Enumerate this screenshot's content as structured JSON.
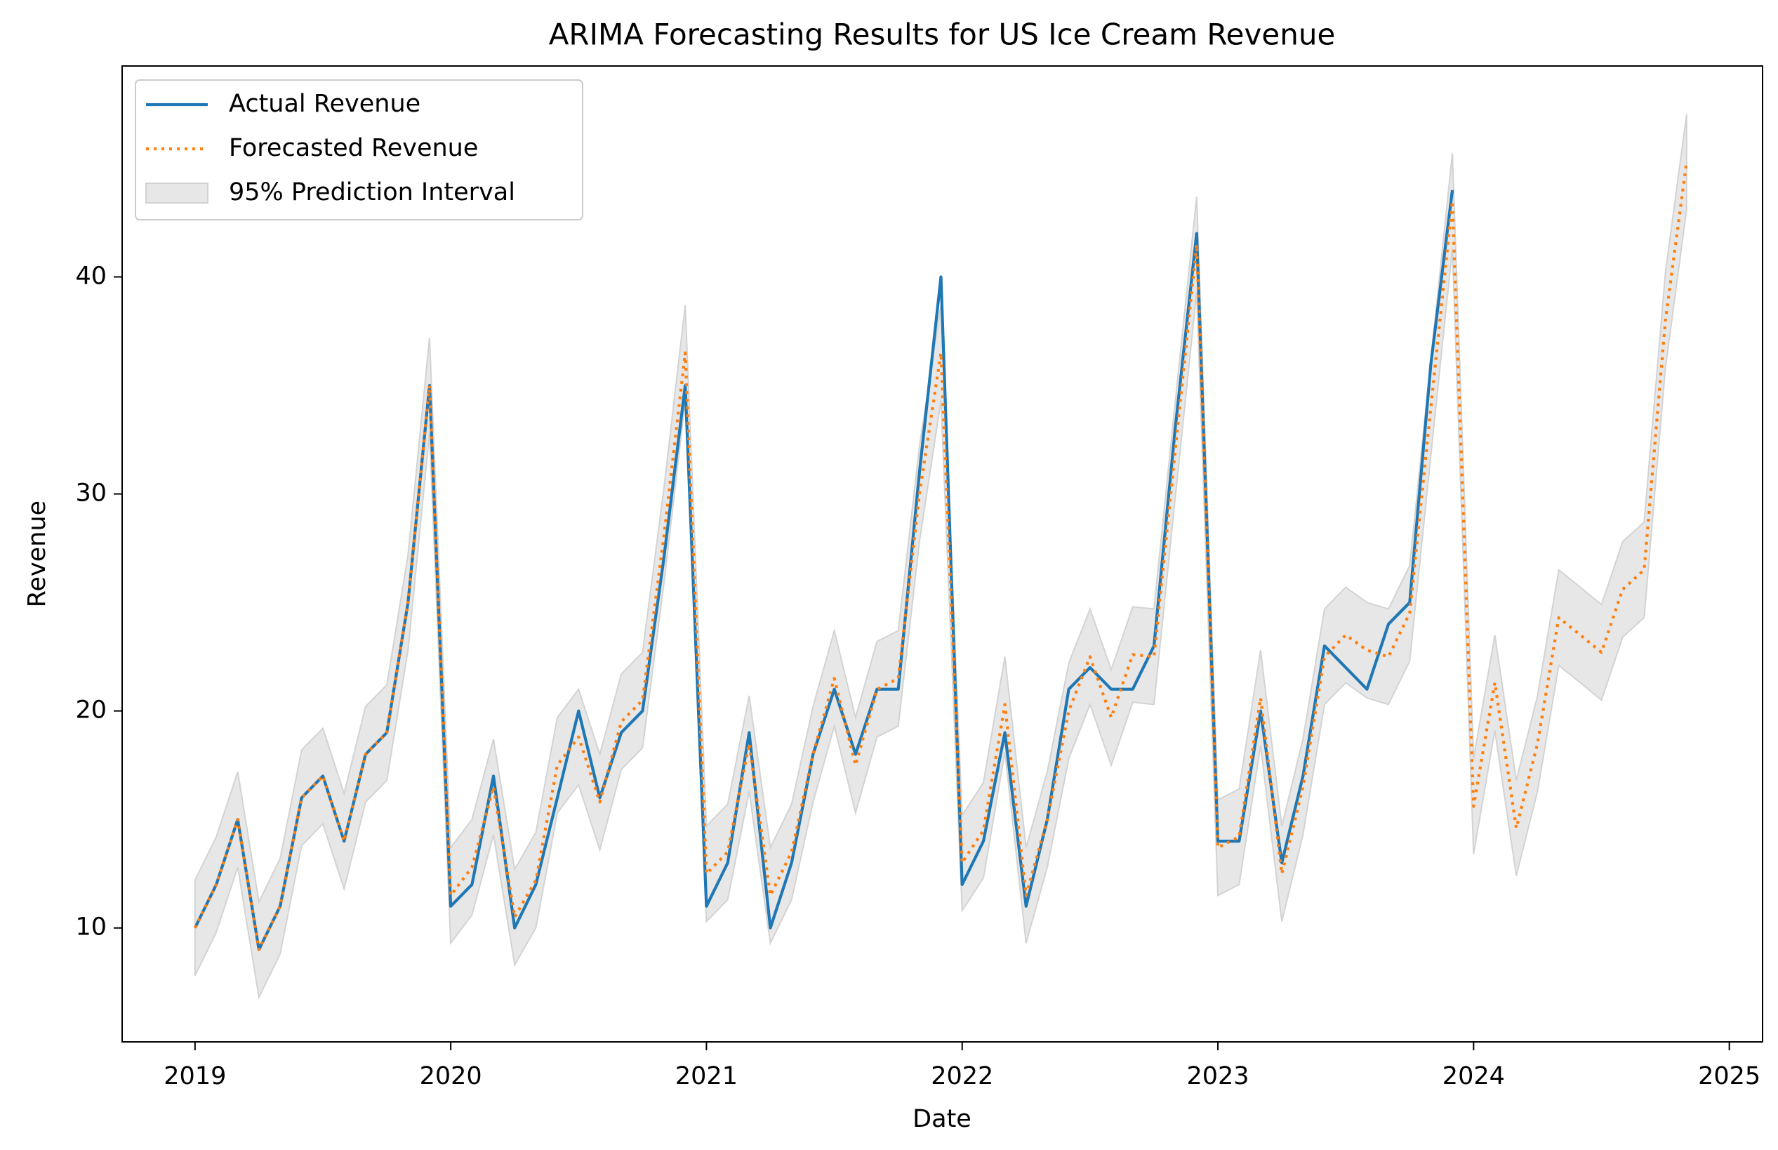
{
  "chart_data": {
    "type": "line",
    "title": "ARIMA Forecasting Results for US Ice Cream Revenue",
    "x_label": "Date",
    "y_label": "Revenue",
    "x": [
      2019,
      2019.083,
      2019.167,
      2019.25,
      2019.333,
      2019.417,
      2019.5,
      2019.583,
      2019.667,
      2019.75,
      2019.833,
      2019.917,
      2020,
      2020.083,
      2020.167,
      2020.25,
      2020.333,
      2020.417,
      2020.5,
      2020.583,
      2020.667,
      2020.75,
      2020.833,
      2020.917,
      2021,
      2021.083,
      2021.167,
      2021.25,
      2021.333,
      2021.417,
      2021.5,
      2021.583,
      2021.667,
      2021.75,
      2021.833,
      2021.917,
      2022,
      2022.083,
      2022.167,
      2022.25,
      2022.333,
      2022.417,
      2022.5,
      2022.583,
      2022.667,
      2022.75,
      2022.833,
      2022.917,
      2023,
      2023.083,
      2023.167,
      2023.25,
      2023.333,
      2023.417,
      2023.5,
      2023.583,
      2023.667,
      2023.75,
      2023.833,
      2023.917,
      2024,
      2024.083,
      2024.167,
      2024.25,
      2024.333,
      2024.417,
      2024.5,
      2024.583,
      2024.667,
      2024.75,
      2024.833
    ],
    "series": [
      {
        "name": "Actual Revenue",
        "color": "#1f77b4",
        "style": "solid",
        "values": [
          10,
          12,
          15,
          9,
          11,
          16,
          17,
          14,
          18,
          19,
          25,
          35,
          11,
          12,
          17,
          10,
          12,
          16,
          20,
          16,
          19,
          20,
          27,
          35,
          11,
          13,
          19,
          10,
          13,
          18,
          21,
          18,
          21,
          21,
          31,
          40,
          12,
          14,
          19,
          11,
          15,
          21,
          22,
          21,
          21,
          23,
          33,
          42,
          14,
          14,
          20,
          13,
          17,
          23,
          22,
          21,
          24,
          25,
          36,
          44,
          null,
          null,
          null,
          null,
          null,
          null,
          null,
          null,
          null,
          null,
          null
        ]
      },
      {
        "name": "Forecasted Revenue",
        "color": "#ff7f0e",
        "style": "dotted",
        "values": [
          10,
          12,
          15,
          9,
          11,
          16,
          17,
          14,
          18,
          19,
          25,
          35,
          11.5,
          12.8,
          16.5,
          10.5,
          12.2,
          17.5,
          18.8,
          15.8,
          19.5,
          20.5,
          28,
          36.5,
          12.5,
          13.5,
          18.5,
          11.5,
          13.5,
          18,
          21.5,
          17.5,
          21,
          21.5,
          30,
          36.5,
          13,
          14.5,
          20.3,
          11.5,
          15,
          20,
          22.5,
          19.7,
          22.6,
          22.5,
          32,
          41.5,
          13.7,
          14.2,
          20.6,
          12.5,
          16.5,
          22.5,
          23.5,
          22.8,
          22.5,
          24.5,
          34,
          43.5,
          15.6,
          21.3,
          14.6,
          18.5,
          24.3,
          23.5,
          22.7,
          25.6,
          26.5,
          38,
          45.3
        ]
      },
      {
        "name": "95% Prediction Interval",
        "color": "#d3d3d3",
        "style": "band",
        "lower": [
          7.8,
          9.8,
          12.8,
          6.8,
          8.8,
          13.8,
          14.8,
          11.8,
          15.8,
          16.8,
          22.8,
          32.8,
          9.3,
          10.6,
          14.3,
          8.3,
          10,
          15.3,
          16.6,
          13.6,
          17.3,
          18.3,
          25.8,
          34.3,
          10.3,
          11.3,
          16.3,
          9.3,
          11.3,
          15.8,
          19.3,
          15.3,
          18.8,
          19.3,
          27.8,
          34.3,
          10.8,
          12.3,
          18.1,
          9.3,
          12.8,
          17.8,
          20.3,
          17.5,
          20.4,
          20.3,
          29.8,
          39.3,
          11.5,
          12,
          18.4,
          10.3,
          14.3,
          20.3,
          21.3,
          20.6,
          20.3,
          22.3,
          31.8,
          41.3,
          13.4,
          19.1,
          12.4,
          16.3,
          22.1,
          21.3,
          20.5,
          23.4,
          24.3,
          35.8,
          43.1
        ],
        "upper": [
          12.2,
          14.2,
          17.2,
          11.2,
          13.2,
          18.2,
          19.2,
          16.2,
          20.2,
          21.2,
          27.2,
          37.2,
          13.7,
          15,
          18.7,
          12.7,
          14.4,
          19.7,
          21,
          18,
          21.7,
          22.7,
          30.2,
          38.7,
          14.7,
          15.7,
          20.7,
          13.7,
          15.7,
          20.2,
          23.7,
          19.7,
          23.2,
          23.7,
          32.2,
          38.7,
          15.2,
          16.7,
          22.5,
          13.7,
          17.2,
          22.2,
          24.7,
          21.9,
          24.8,
          24.7,
          34.2,
          43.7,
          15.9,
          16.4,
          22.8,
          14.7,
          18.7,
          24.7,
          25.7,
          25,
          24.7,
          26.7,
          36.2,
          45.7,
          17.8,
          23.5,
          16.8,
          20.7,
          26.5,
          25.7,
          24.9,
          27.8,
          28.7,
          40.2,
          47.5
        ]
      }
    ],
    "xlim": [
      2018.715,
      2025.13
    ],
    "xticks": [
      2019,
      2020,
      2021,
      2022,
      2023,
      2024,
      2025
    ],
    "ylim": [
      4.75,
      49.72
    ],
    "yticks": [
      10,
      20,
      30,
      40
    ],
    "grid": false,
    "legend": "upper left"
  }
}
